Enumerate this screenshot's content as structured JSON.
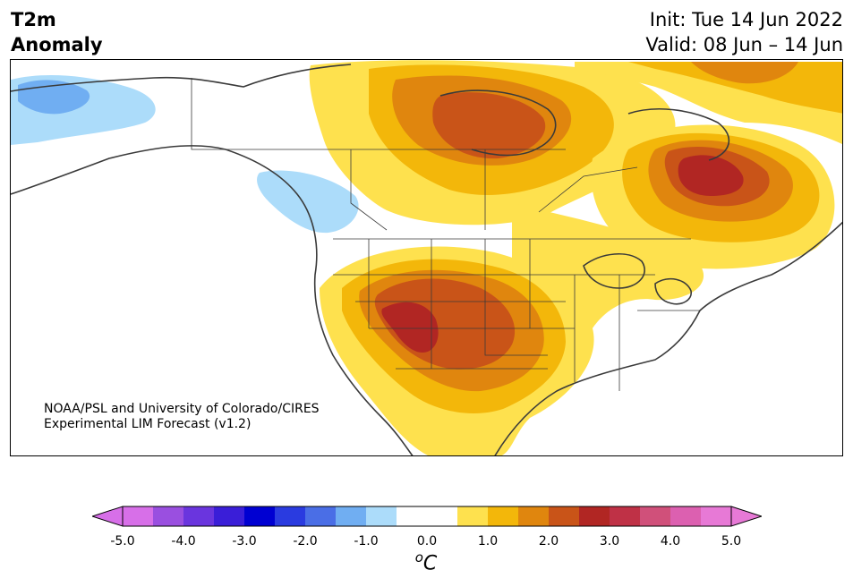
{
  "title": {
    "line1": "T2m",
    "line2": "Anomaly"
  },
  "init": {
    "line1": "Init: Tue 14 Jun 2022",
    "line2": "Valid: 08 Jun – 14 Jun"
  },
  "credit": {
    "line1": "NOAA/PSL and University of Colorado/CIRES",
    "line2": "Experimental LIM Forecast (v1.2)"
  },
  "colorbar": {
    "unit_base": "C",
    "unit_sup": "o",
    "ticks": [
      "-5.0",
      "-4.0",
      "-3.0",
      "-2.0",
      "-1.0",
      "0.0",
      "1.0",
      "2.0",
      "3.0",
      "4.0",
      "5.0"
    ],
    "colors": [
      "#d76fe8",
      "#9a4fe0",
      "#6a35de",
      "#3a1ed8",
      "#0000d2",
      "#2a3be0",
      "#4a6ee6",
      "#70aef2",
      "#acdcfa",
      "#ffffff",
      "#ffffff",
      "#fee14e",
      "#f3b70a",
      "#e0860e",
      "#c95418",
      "#b12623",
      "#bf3146",
      "#d0507a",
      "#dc60b0",
      "#e779d6"
    ],
    "under_color": "#d76fe8",
    "over_color": "#e779d6"
  }
}
